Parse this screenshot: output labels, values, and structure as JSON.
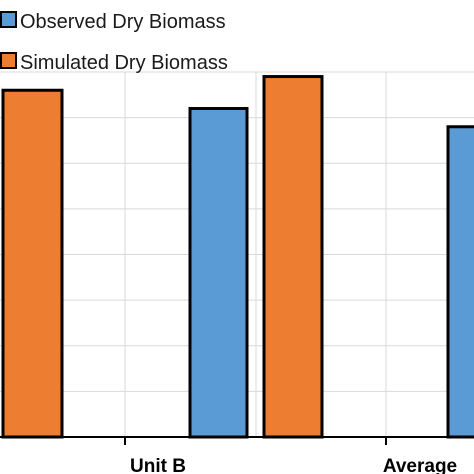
{
  "colors": {
    "observed": "#5b9bd5",
    "simulated": "#ed7d31",
    "outline": "#000000",
    "grid": "#d9d9d9"
  },
  "chart_data": {
    "type": "bar",
    "categories": [
      "",
      "Unit B",
      "Average"
    ],
    "series": [
      {
        "name": "Observed Dry Biomass",
        "values": [
          null,
          7.2,
          6.8
        ]
      },
      {
        "name": "Simulated Dry Biomass",
        "values": [
          7.6,
          null,
          7.9
        ]
      }
    ],
    "ylim": [
      0,
      8
    ],
    "grid": true,
    "legend": "top-left"
  }
}
